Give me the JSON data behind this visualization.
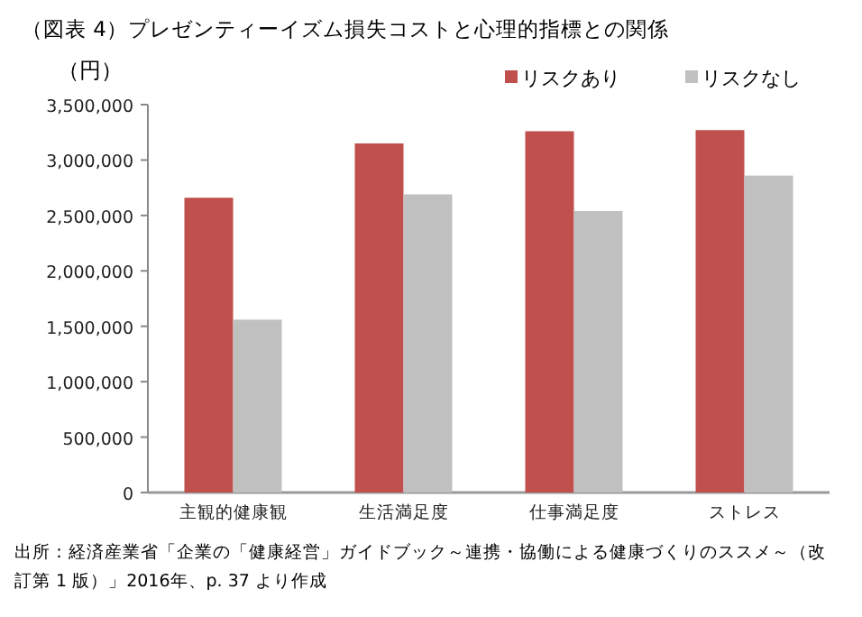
{
  "chart_data": {
    "type": "bar",
    "title": "（図表 4）プレゼンティーイズム損失コストと心理的指標との関係",
    "ylabel": "（円）",
    "categories": [
      "主観的健康観",
      "生活満足度",
      "仕事満足度",
      "ストレス"
    ],
    "series": [
      {
        "name": "リスクあり",
        "color": "#c0504d",
        "values": [
          2660000,
          3150000,
          3260000,
          3270000
        ]
      },
      {
        "name": "リスクなし",
        "color": "#c0c0c0",
        "values": [
          1560000,
          2690000,
          2540000,
          2860000
        ]
      }
    ],
    "ylim": [
      0,
      3500000
    ],
    "yticks": [
      {
        "value": 0,
        "label": "0"
      },
      {
        "value": 500000,
        "label": "500,000"
      },
      {
        "value": 1000000,
        "label": "1,000,000"
      },
      {
        "value": 1500000,
        "label": "1,500,000"
      },
      {
        "value": 2000000,
        "label": "2,000,000"
      },
      {
        "value": 2500000,
        "label": "2,500,000"
      },
      {
        "value": 3000000,
        "label": "3,000,000"
      },
      {
        "value": 3500000,
        "label": "3,500,000"
      }
    ],
    "legend": "top right",
    "grid": false,
    "annotations": [
      "出所：経済産業省「企業の「健康経営」ガイドブック～連携・協働による健康づくりのススメ～（改訂第 1 版）」2016年、p. 37 より作成"
    ]
  }
}
